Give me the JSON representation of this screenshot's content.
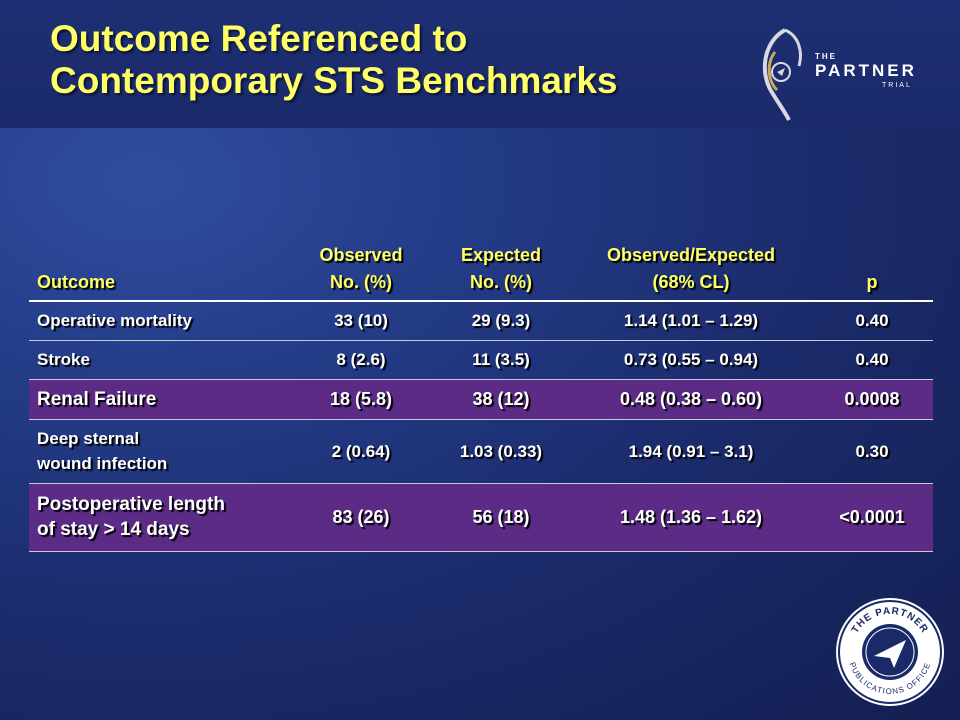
{
  "title": {
    "line1": "Outcome Referenced to",
    "line2": "Contemporary STS Benchmarks"
  },
  "logo": {
    "the": "THE",
    "partner": "PARTNER",
    "trial": "TRIAL"
  },
  "seal": {
    "top_text": "THE PARTNER",
    "bottom_text": "PUBLICATIONS OFFICE"
  },
  "table": {
    "headers": {
      "outcome": "Outcome",
      "observed": [
        "Observed",
        "No. (%)"
      ],
      "expected": [
        "Expected",
        "No. (%)"
      ],
      "ratio": [
        "Observed/Expected",
        "(68% CL)"
      ],
      "p": "p"
    },
    "rows": [
      {
        "outcome": [
          "Operative mortality"
        ],
        "observed": "33 (10)",
        "expected": "29 (9.3)",
        "ratio": "1.14 (1.01 – 1.29)",
        "p": "0.40",
        "highlight": false
      },
      {
        "outcome": [
          "Stroke"
        ],
        "observed": "8 (2.6)",
        "expected": "11 (3.5)",
        "ratio": "0.73 (0.55 – 0.94)",
        "p": "0.40",
        "highlight": false
      },
      {
        "outcome": [
          "Renal Failure"
        ],
        "observed": "18 (5.8)",
        "expected": "38 (12)",
        "ratio": "0.48 (0.38 – 0.60)",
        "p": "0.0008",
        "highlight": true
      },
      {
        "outcome": [
          "Deep sternal",
          "wound infection"
        ],
        "observed": "2 (0.64)",
        "expected": "1.03 (0.33)",
        "ratio": "1.94 (0.91 – 3.1)",
        "p": "0.30",
        "highlight": false
      },
      {
        "outcome": [
          "Postoperative length",
          "of stay > 14 days"
        ],
        "observed": "83 (26)",
        "expected": "56 (18)",
        "ratio": "1.48 (1.36 – 1.62)",
        "p": "<0.0001",
        "highlight": true
      }
    ]
  },
  "colors": {
    "title": "#ffff66",
    "header_text": "#ffff66",
    "highlight_row": "#5b2b86",
    "background": "#1a2a69"
  }
}
